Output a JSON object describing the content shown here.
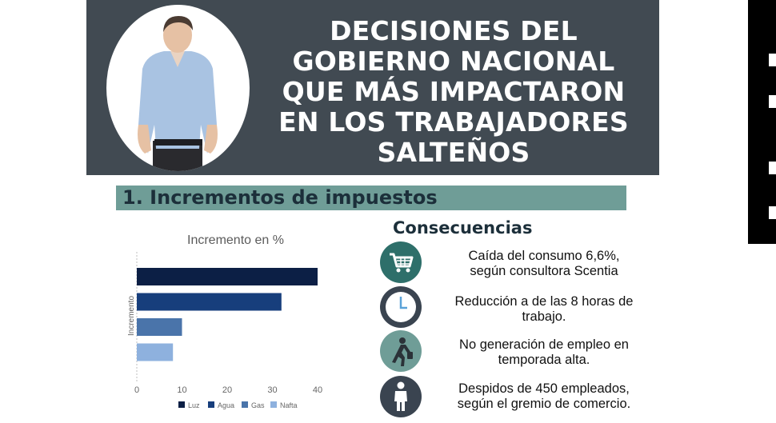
{
  "banner": {
    "title_lines": [
      "DECISIONES DEL",
      "GOBIERNO NACIONAL",
      "QUE MÁS IMPACTARON",
      "EN LOS TRABAJADORES",
      "SALTEÑOS"
    ]
  },
  "section": {
    "title": "1.  Incrementos de impuestos"
  },
  "chart_data": {
    "type": "bar",
    "orientation": "horizontal",
    "title": "Incremento en %",
    "ylabel": "Incremento",
    "xlabel": "",
    "categories": [
      "Luz",
      "Agua",
      "Gas",
      "Nafta"
    ],
    "values": [
      40,
      32,
      10,
      8
    ],
    "colors": [
      "#0c1f45",
      "#173e7c",
      "#4a74aa",
      "#8eb1de"
    ],
    "xlim": [
      0,
      40
    ],
    "xticks": [
      0,
      10,
      20,
      30,
      40
    ],
    "grid": false,
    "legend": "bottom"
  },
  "consequences": {
    "title": "Consecuencias",
    "items": [
      {
        "icon": "shopping-cart-icon",
        "lines": [
          "Caída del consumo 6,6%,",
          "según consultora Scentia"
        ],
        "color": "#2e6f6a"
      },
      {
        "icon": "clock-icon",
        "lines": [
          "Reducción a de las 8 horas de",
          "trabajo."
        ],
        "color": "#3a4450"
      },
      {
        "icon": "worker-icon",
        "lines": [
          "No generación de empleo en",
          "temporada alta."
        ],
        "color": "#6f9d97"
      },
      {
        "icon": "person-icon",
        "lines": [
          "Despidos de 450 empleados,",
          "según el gremio de comercio."
        ],
        "color": "#3a4450"
      }
    ]
  }
}
